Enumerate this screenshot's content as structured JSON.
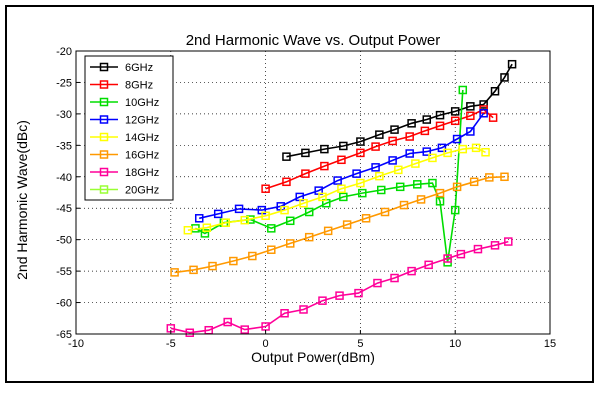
{
  "chart_data": {
    "type": "line",
    "title": "2nd Harmonic Wave vs. Output Power",
    "xlabel": "Output Power(dBm)",
    "ylabel": "2nd Harmonic Wave(dBc)",
    "xlim": [
      -10,
      15
    ],
    "ylim": [
      -65,
      -20
    ],
    "xticks": [
      "-10",
      "-5",
      "0",
      "5",
      "10",
      "15"
    ],
    "yticks": [
      "-20",
      "-25",
      "-30",
      "-35",
      "-40",
      "-45",
      "-50",
      "-55",
      "-60",
      "-65"
    ],
    "grid": true,
    "legend_position": "top-left",
    "marker": "square",
    "series": [
      {
        "name": "6GHz",
        "color": "#000000",
        "x": [
          1.1,
          2.1,
          3.1,
          4.1,
          5.0,
          6.0,
          6.8,
          7.7,
          8.5,
          9.2,
          10.0,
          10.8,
          11.5,
          12.1,
          12.6,
          13.0
        ],
        "y": [
          -36.8,
          -36.2,
          -35.6,
          -35.1,
          -34.4,
          -33.3,
          -32.5,
          -31.5,
          -30.9,
          -30.2,
          -29.6,
          -28.8,
          -28.5,
          -26.4,
          -24.2,
          -22.1
        ]
      },
      {
        "name": "8GHz",
        "color": "#ff0000",
        "x": [
          0.0,
          1.1,
          2.1,
          3.1,
          4.0,
          5.0,
          5.8,
          6.7,
          7.6,
          8.4,
          9.2,
          10.0,
          10.8,
          11.5,
          12.0
        ],
        "y": [
          -41.9,
          -40.8,
          -39.5,
          -38.3,
          -37.3,
          -36.2,
          -35.2,
          -34.3,
          -33.6,
          -32.7,
          -31.9,
          -31.1,
          -30.3,
          -29.3,
          -30.6
        ]
      },
      {
        "name": "10GHz",
        "color": "#00dd00",
        "x": [
          -3.7,
          -3.2,
          -2.2,
          -0.8,
          0.3,
          1.3,
          2.3,
          3.2,
          4.1,
          5.1,
          6.1,
          7.1,
          8.0,
          8.8,
          9.2,
          9.6,
          10.0,
          10.4
        ],
        "y": [
          -48.2,
          -49.0,
          -47.3,
          -46.8,
          -48.2,
          -47.0,
          -45.6,
          -44.2,
          -43.2,
          -42.6,
          -42.1,
          -41.6,
          -41.2,
          -41.0,
          -43.9,
          -53.6,
          -45.3,
          -26.2
        ]
      },
      {
        "name": "12GHz",
        "color": "#0000ff",
        "x": [
          -3.5,
          -2.5,
          -1.4,
          -0.2,
          0.8,
          1.8,
          2.8,
          3.8,
          4.8,
          5.8,
          6.7,
          7.6,
          8.5,
          9.3,
          10.1,
          10.8,
          11.5
        ],
        "y": [
          -46.6,
          -45.9,
          -45.1,
          -45.3,
          -44.7,
          -43.2,
          -42.2,
          -40.6,
          -39.5,
          -38.5,
          -37.4,
          -36.3,
          -36.0,
          -35.4,
          -34.0,
          -32.8,
          -29.9
        ]
      },
      {
        "name": "14GHz",
        "color": "#ffff00",
        "x": [
          -4.1,
          -3.1,
          -2.1,
          -1.1,
          0.0,
          1.0,
          2.0,
          3.0,
          4.0,
          5.0,
          6.0,
          7.0,
          7.9,
          8.8,
          9.6,
          10.4,
          11.1,
          11.6
        ],
        "y": [
          -48.5,
          -48.1,
          -47.3,
          -46.9,
          -46.2,
          -45.3,
          -44.2,
          -43.2,
          -41.9,
          -41.0,
          -39.9,
          -38.9,
          -37.9,
          -37.0,
          -36.2,
          -35.6,
          -35.4,
          -36.1
        ]
      },
      {
        "name": "16GHz",
        "color": "#ff9900",
        "x": [
          -4.8,
          -3.8,
          -2.8,
          -1.7,
          -0.7,
          0.3,
          1.3,
          2.3,
          3.3,
          4.3,
          5.3,
          6.3,
          7.3,
          8.2,
          9.2,
          10.1,
          11.0,
          11.8,
          12.6
        ],
        "y": [
          -55.2,
          -54.8,
          -54.2,
          -53.4,
          -52.6,
          -51.6,
          -50.6,
          -49.6,
          -48.6,
          -47.6,
          -46.6,
          -45.6,
          -44.5,
          -43.6,
          -42.6,
          -41.6,
          -40.8,
          -40.1,
          -40.0
        ]
      },
      {
        "name": "18GHz",
        "color": "#ff0099",
        "x": [
          -5.0,
          -4.0,
          -3.0,
          -2.0,
          -1.1,
          0.0,
          1.0,
          2.0,
          3.0,
          3.9,
          4.9,
          5.9,
          6.8,
          7.7,
          8.6,
          9.6,
          10.3,
          11.2,
          12.1,
          12.8
        ],
        "y": [
          -64.1,
          -64.8,
          -64.4,
          -63.1,
          -64.3,
          -63.8,
          -61.7,
          -61.1,
          -59.7,
          -58.9,
          -58.5,
          -56.9,
          -56.1,
          -55.0,
          -54.0,
          -53.0,
          -52.3,
          -51.5,
          -50.9,
          -50.3
        ]
      },
      {
        "name": "20GHz",
        "color": "#99ff33",
        "x": [],
        "y": []
      }
    ]
  }
}
